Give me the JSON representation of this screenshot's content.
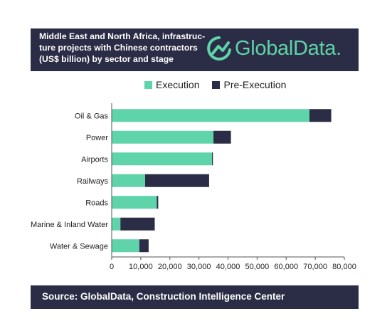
{
  "header": {
    "title_lines": [
      "Middle East and North Africa, infrastruc-",
      "ture projects with Chinese contractors",
      "(US$ billion) by sector and stage"
    ],
    "logo_text": "GlobalData."
  },
  "colors": {
    "header_bg": "#2b2c45",
    "execution": "#5fd3a9",
    "pre_execution": "#2b2c45",
    "logo": "#5fd3a9"
  },
  "footer": {
    "source": "Source:  GlobalData, Construction Intelligence Center"
  },
  "chart_data": {
    "type": "bar",
    "orientation": "horizontal",
    "stacked": true,
    "categories": [
      "Oil & Gas",
      "Power",
      "Airports",
      "Railways",
      "Roads",
      "Marine & Inland Water",
      "Water & Sewage"
    ],
    "series": [
      {
        "name": "Execution",
        "values": [
          68000,
          35000,
          34500,
          11500,
          15500,
          3000,
          9500
        ]
      },
      {
        "name": "Pre-Execution",
        "values": [
          7500,
          6000,
          300,
          22000,
          500,
          11800,
          3200
        ]
      }
    ],
    "xlim": [
      0,
      80000
    ],
    "xticks": [
      "0",
      "10,000",
      "20,000",
      "30,000",
      "40,000",
      "50,000",
      "60,000",
      "70,000",
      "80,000"
    ],
    "grid": false,
    "legend": "top"
  }
}
